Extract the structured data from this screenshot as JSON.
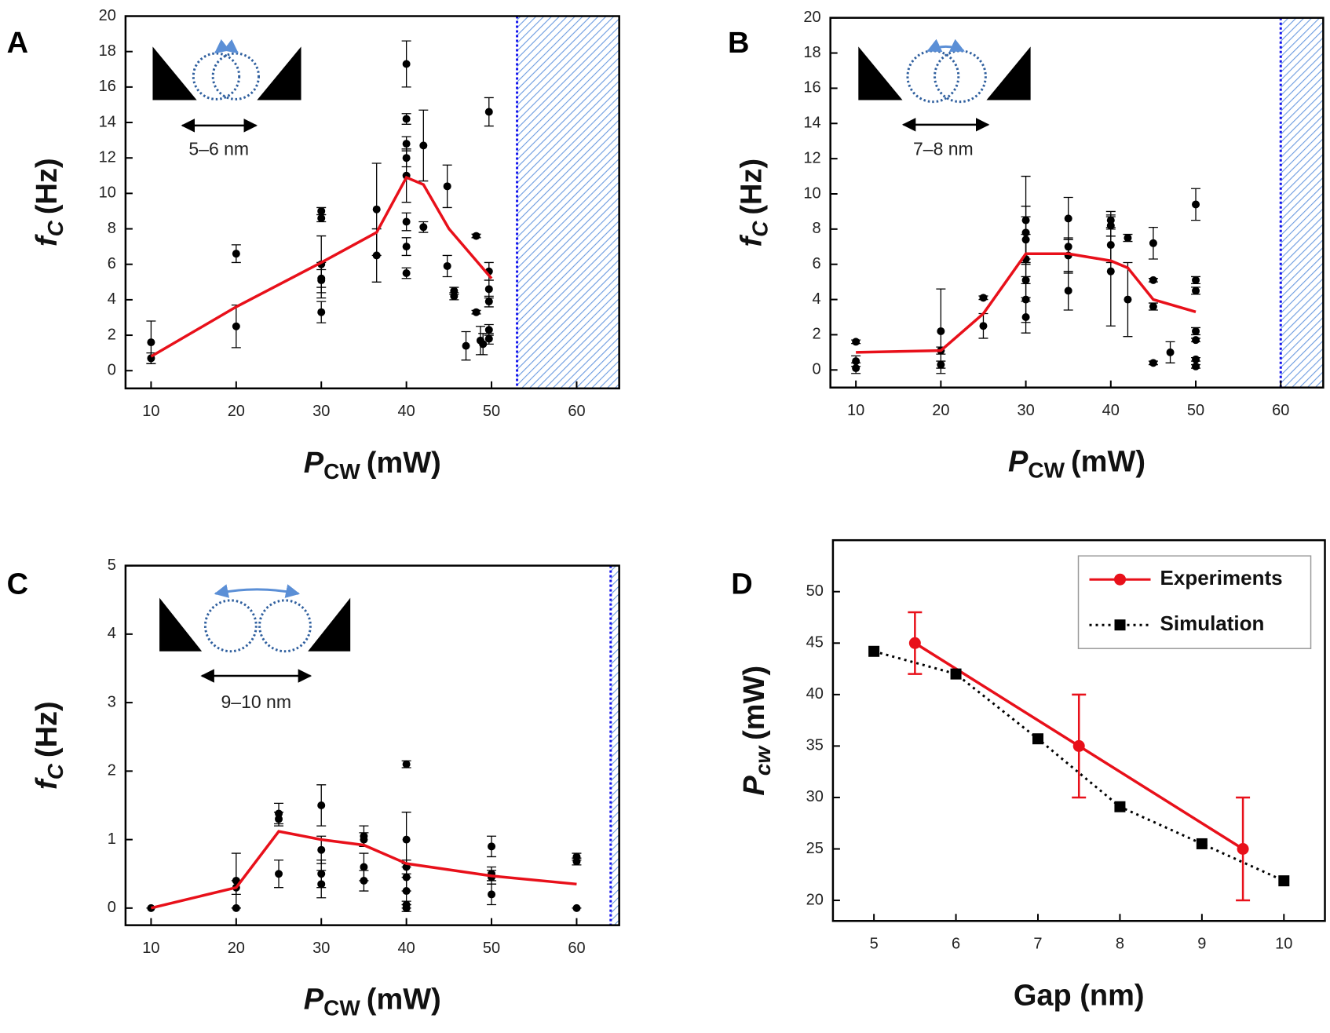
{
  "chart_data": [
    {
      "type": "scatter",
      "panel_label": "A",
      "xlabel": {
        "main": "P",
        "sub": "CW",
        "unit": "(mW)"
      },
      "ylabel": {
        "main": "f",
        "sub": "C",
        "unit": "(Hz)"
      },
      "inset_label": "5–6 nm",
      "xlim": [
        7,
        65
      ],
      "xticks": [
        10,
        20,
        30,
        40,
        50,
        60
      ],
      "ylim": [
        -1,
        20
      ],
      "yticks": [
        0,
        2,
        4,
        6,
        8,
        10,
        12,
        14,
        16,
        18,
        20
      ],
      "shaded_region_start": 53,
      "grid": false,
      "series": [
        {
          "mode": "markers",
          "color": "#000000",
          "x": [
            10,
            10,
            20,
            20,
            30,
            30,
            30,
            30,
            30,
            30,
            36.5,
            36.5,
            40,
            40,
            40,
            40,
            40,
            40,
            40,
            40,
            42,
            42,
            44.8,
            44.8,
            45.6,
            45.6,
            47,
            48.2,
            48.2,
            48.7,
            49,
            49.7,
            49.7,
            49.7,
            49.7,
            49.7,
            49.7
          ],
          "y": [
            1.6,
            0.7,
            6.6,
            2.5,
            9.0,
            8.6,
            6.0,
            5.2,
            5.1,
            3.3,
            9.1,
            6.5,
            17.3,
            14.2,
            12.8,
            12.0,
            11.0,
            8.4,
            7.0,
            5.5,
            12.7,
            8.1,
            10.4,
            5.9,
            4.5,
            4.2,
            1.4,
            7.6,
            3.3,
            1.7,
            1.5,
            14.6,
            5.6,
            4.6,
            3.9,
            2.3,
            1.8
          ],
          "err": [
            1.2,
            0.3,
            0.5,
            1.2,
            0.2,
            0.2,
            1.6,
            0.5,
            1.0,
            0.6,
            2.6,
            1.5,
            1.3,
            0.3,
            0.4,
            0.5,
            1.5,
            0.5,
            0.5,
            0.3,
            2.0,
            0.3,
            1.2,
            0.6,
            0.2,
            0.2,
            0.8,
            0.1,
            0.1,
            0.8,
            0.6,
            0.8,
            0.5,
            0.5,
            0.3,
            0.3,
            0.3
          ]
        },
        {
          "mode": "line",
          "color": "#e8101a",
          "x": [
            10,
            20,
            30,
            36.5,
            40,
            42,
            45,
            50
          ],
          "y": [
            0.8,
            3.6,
            6.1,
            7.8,
            10.9,
            10.5,
            8.0,
            5.2
          ]
        }
      ]
    },
    {
      "type": "scatter",
      "panel_label": "B",
      "xlabel": {
        "main": "P",
        "sub": "CW",
        "unit": "(mW)"
      },
      "ylabel": {
        "main": "f",
        "sub": "C",
        "unit": "(Hz)"
      },
      "inset_label": "7–8 nm",
      "xlim": [
        7,
        65
      ],
      "xticks": [
        10,
        20,
        30,
        40,
        50,
        60
      ],
      "ylim": [
        -1,
        20
      ],
      "yticks": [
        0,
        2,
        4,
        6,
        8,
        10,
        12,
        14,
        16,
        18,
        20
      ],
      "shaded_region_start": 60,
      "grid": false,
      "series": [
        {
          "mode": "markers",
          "color": "#000000",
          "x": [
            10,
            10,
            10,
            20,
            20,
            20,
            25,
            25,
            30,
            30,
            30,
            30,
            30,
            30,
            30,
            35,
            35,
            35,
            35,
            40,
            40,
            40,
            40,
            42,
            42,
            45,
            45,
            45,
            45,
            47,
            50,
            50,
            50,
            50,
            50,
            50,
            50
          ],
          "y": [
            1.6,
            0.5,
            0.1,
            2.2,
            1.1,
            0.3,
            4.1,
            2.5,
            8.5,
            7.8,
            7.4,
            6.3,
            5.1,
            4.0,
            3.0,
            8.6,
            7.0,
            6.5,
            4.5,
            8.5,
            8.2,
            7.1,
            5.6,
            7.5,
            4.0,
            7.2,
            5.1,
            3.6,
            0.4,
            1.0,
            9.4,
            5.1,
            4.5,
            2.2,
            1.7,
            0.6,
            0.2
          ],
          "err": [
            0.1,
            0.3,
            0.3,
            2.4,
            0.2,
            0.2,
            0.1,
            0.7,
            2.5,
            1.5,
            1.3,
            1.4,
            1.0,
            1.3,
            0.9,
            1.2,
            0.4,
            1.0,
            1.1,
            0.5,
            0.6,
            1.0,
            3.1,
            0.2,
            2.1,
            0.9,
            0.1,
            0.2,
            0.1,
            0.6,
            0.9,
            0.2,
            0.2,
            0.2,
            0.1,
            0.1,
            0.1
          ]
        },
        {
          "mode": "line",
          "color": "#e8101a",
          "x": [
            10,
            20,
            25,
            30,
            35,
            40,
            42,
            45,
            50
          ],
          "y": [
            1.0,
            1.1,
            3.2,
            6.6,
            6.6,
            6.2,
            5.8,
            4.0,
            3.3
          ]
        }
      ]
    },
    {
      "type": "scatter",
      "panel_label": "C",
      "xlabel": {
        "main": "P",
        "sub": "CW",
        "unit": "(mW)"
      },
      "ylabel": {
        "main": "f",
        "sub": "C",
        "unit": "(Hz)"
      },
      "inset_label": "9–10 nm",
      "xlim": [
        7,
        65
      ],
      "xticks": [
        10,
        20,
        30,
        40,
        50,
        60
      ],
      "ylim": [
        -0.25,
        5
      ],
      "yticks": [
        0,
        1,
        2,
        3,
        4,
        5
      ],
      "shaded_region_start": 64,
      "grid": false,
      "series": [
        {
          "mode": "markers",
          "color": "#000000",
          "x": [
            10,
            20,
            20,
            20,
            25,
            25,
            25,
            30,
            30,
            30,
            30,
            35,
            35,
            35,
            35,
            40,
            40,
            40,
            40,
            40,
            40,
            40,
            50,
            50,
            50,
            50,
            60,
            60,
            60
          ],
          "y": [
            0,
            0.4,
            0.3,
            0,
            1.38,
            1.3,
            0.5,
            1.5,
            0.85,
            0.5,
            0.35,
            1.05,
            1.0,
            0.6,
            0.4,
            2.1,
            1.0,
            0.6,
            0.45,
            0.25,
            0.05,
            0,
            0.9,
            0.5,
            0.45,
            0.2,
            0.75,
            0.68,
            0
          ],
          "err": [
            0,
            0.4,
            0.1,
            0,
            0.15,
            0.1,
            0.2,
            0.3,
            0.2,
            0.2,
            0.2,
            0.15,
            0.1,
            0.2,
            0.15,
            0.05,
            0.4,
            0.1,
            0.2,
            0.2,
            0.05,
            0.05,
            0.15,
            0.1,
            0.1,
            0.15,
            0.05,
            0.05,
            0
          ]
        },
        {
          "mode": "line",
          "color": "#e8101a",
          "x": [
            10,
            20,
            25,
            30,
            35,
            40,
            50,
            60
          ],
          "y": [
            0,
            0.3,
            1.12,
            1.0,
            0.92,
            0.65,
            0.47,
            0.35
          ]
        }
      ]
    },
    {
      "type": "line",
      "panel_label": "D",
      "xlabel": {
        "main": "Gap (nm)"
      },
      "ylabel": {
        "main": "P",
        "sub": "cw",
        "unit": "(mW)"
      },
      "xlim": [
        4.5,
        10.5
      ],
      "xticks": [
        5,
        6,
        7,
        8,
        9,
        10
      ],
      "ylim": [
        18,
        55
      ],
      "yticks": [
        20,
        25,
        30,
        35,
        40,
        45,
        50
      ],
      "legend": "upper right",
      "grid": false,
      "series": [
        {
          "name": "Experiments",
          "mode": "line+markers",
          "marker": "circle",
          "dash": "solid",
          "color": "#e8101a",
          "x": [
            5.5,
            7.5,
            9.5
          ],
          "y": [
            45,
            35,
            25
          ],
          "err": [
            3,
            5,
            5
          ]
        },
        {
          "name": "Simulation",
          "mode": "line+markers",
          "marker": "square",
          "dash": "dotted",
          "color": "#000000",
          "x": [
            5,
            6,
            7,
            8,
            9,
            10
          ],
          "y": [
            44.2,
            42,
            35.7,
            29.1,
            25.5,
            21.9
          ]
        }
      ]
    }
  ]
}
